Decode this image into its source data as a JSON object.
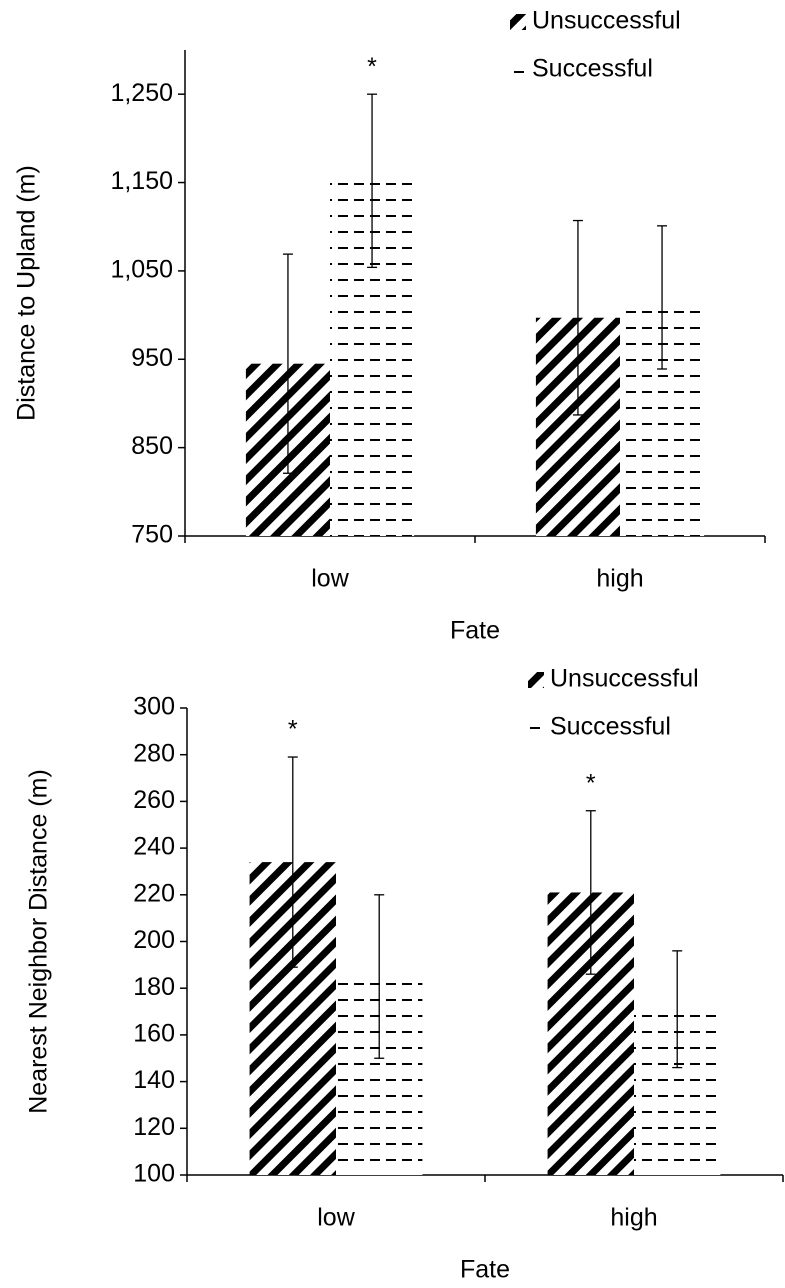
{
  "chart_data": [
    {
      "type": "bar",
      "x_label": "Fate",
      "y_label": "Distance to Upland (m)",
      "categories": [
        "low",
        "high"
      ],
      "series": [
        {
          "name": "Unsuccessful",
          "color": "#000000",
          "pattern": "diagonal",
          "values": [
            945,
            997
          ],
          "errors": [
            124,
            110
          ]
        },
        {
          "name": "Successful",
          "color": "#000000",
          "pattern": "dash",
          "values": [
            1152,
            1020
          ],
          "errors": [
            98,
            81
          ]
        }
      ],
      "ylim": [
        750,
        1300
      ],
      "yticks": [
        750,
        850,
        950,
        {
          "value": 1050,
          "label": "1,050"
        },
        {
          "value": 1150,
          "label": "1,150"
        },
        {
          "value": 1250,
          "label": "1,250"
        }
      ],
      "legend": "upper right",
      "annotations": [
        {
          "text": "*",
          "category": "low",
          "series": "Successful"
        }
      ]
    },
    {
      "type": "bar",
      "x_label": "Fate",
      "y_label": "Nearest Neighbor Distance (m)",
      "categories": [
        "low",
        "high"
      ],
      "series": [
        {
          "name": "Unsuccessful",
          "color": "#000000",
          "pattern": "diagonal",
          "values": [
            234,
            221
          ],
          "errors": [
            45,
            35
          ]
        },
        {
          "name": "Successful",
          "color": "#000000",
          "pattern": "dash",
          "values": [
            185,
            171
          ],
          "errors": [
            35,
            25
          ]
        }
      ],
      "ylim": [
        100,
        300
      ],
      "yticks": [
        100,
        120,
        140,
        160,
        180,
        200,
        220,
        240,
        260,
        280,
        300
      ],
      "legend": "upper right",
      "annotations": [
        {
          "text": "*",
          "category": "low",
          "series": "Unsuccessful"
        },
        {
          "text": "*",
          "category": "high",
          "series": "Unsuccessful"
        }
      ]
    }
  ]
}
